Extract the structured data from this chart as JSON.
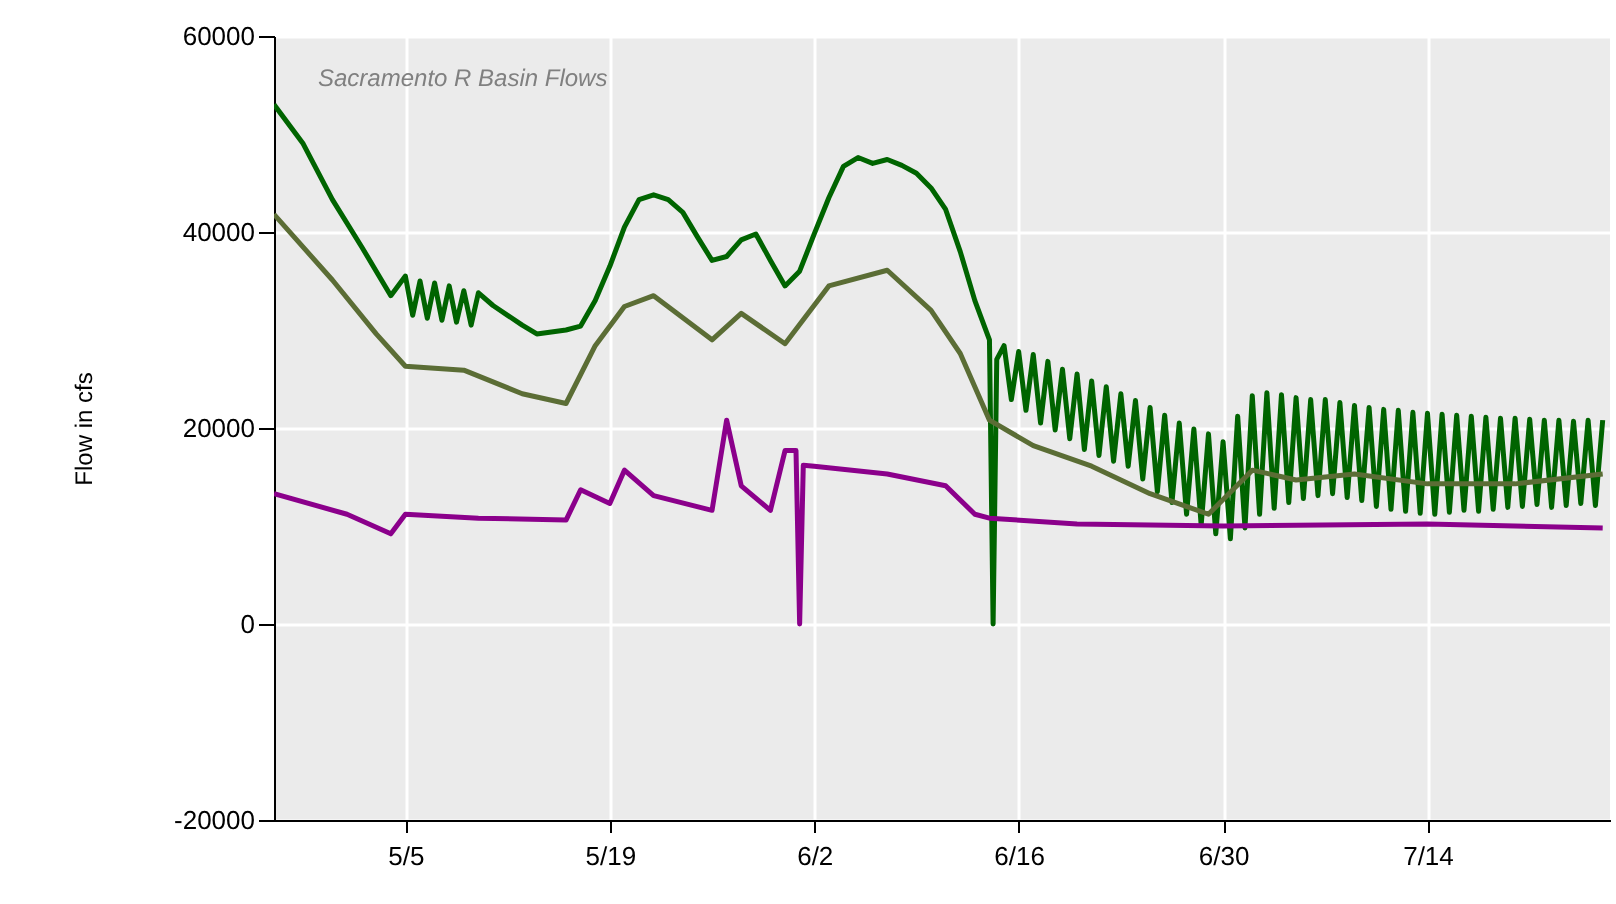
{
  "chart_data": {
    "type": "line",
    "title": "Sacramento R Basin Flows",
    "ylabel": "Flow in cfs",
    "xlim": [
      "--04-26",
      "--07-26T12:00"
    ],
    "xticks": [
      {
        "value": "--05-05",
        "label": "5/5"
      },
      {
        "value": "--05-19",
        "label": "5/19"
      },
      {
        "value": "--06-02",
        "label": "6/2"
      },
      {
        "value": "--06-16",
        "label": "6/16"
      },
      {
        "value": "--06-30",
        "label": "6/30"
      },
      {
        "value": "--07-14",
        "label": "7/14"
      }
    ],
    "ylim": [
      -20000,
      60000
    ],
    "yticks": [
      -20000,
      0,
      20000,
      40000,
      60000
    ],
    "grid": true,
    "marker": "none",
    "line_style": "solid",
    "series": [
      {
        "color": "#006400",
        "x": [
          "--04-26",
          "--04-28",
          "--04-30",
          "--05-02",
          "--05-03",
          "--05-04",
          "--05-05",
          "--05-05T12:00",
          "--05-06",
          "--05-06T12:00",
          "--05-07",
          "--05-07T12:00",
          "--05-08",
          "--05-08T12:00",
          "--05-09",
          "--05-09T12:00",
          "--05-10",
          "--05-11",
          "--05-12",
          "--05-13",
          "--05-14",
          "--05-15",
          "--05-16",
          "--05-17",
          "--05-18",
          "--05-19",
          "--05-20",
          "--05-21",
          "--05-22",
          "--05-23",
          "--05-24",
          "--05-25",
          "--05-26",
          "--05-27",
          "--05-28",
          "--05-29",
          "--05-30",
          "--05-31",
          "--06-01",
          "--06-02",
          "--06-03",
          "--06-04",
          "--06-05",
          "--06-06",
          "--06-07",
          "--06-08",
          "--06-09",
          "--06-10",
          "--06-11",
          "--06-12",
          "--06-13",
          "--06-14",
          "--06-14T06:00",
          "--06-14T12:00",
          "--06-15",
          "--06-15T12:00",
          "--06-16",
          "--06-16T12:00",
          "--06-17",
          "--06-17T12:00",
          "--06-18",
          "--06-18T12:00",
          "--06-19",
          "--06-19T12:00",
          "--06-20",
          "--06-20T12:00",
          "--06-21",
          "--06-21T12:00",
          "--06-22",
          "--06-22T12:00",
          "--06-23",
          "--06-23T12:00",
          "--06-24",
          "--06-24T12:00",
          "--06-25",
          "--06-25T12:00",
          "--06-26",
          "--06-26T12:00",
          "--06-27",
          "--06-27T12:00",
          "--06-28",
          "--06-28T12:00",
          "--06-29",
          "--06-29T12:00",
          "--06-30",
          "--06-30T12:00",
          "--07-01",
          "--07-01T12:00",
          "--07-02",
          "--07-02T12:00",
          "--07-03",
          "--07-03T12:00",
          "--07-04",
          "--07-04T12:00",
          "--07-05",
          "--07-05T12:00",
          "--07-06",
          "--07-06T12:00",
          "--07-07",
          "--07-07T12:00",
          "--07-08",
          "--07-08T12:00",
          "--07-09",
          "--07-09T12:00",
          "--07-10",
          "--07-10T12:00",
          "--07-11",
          "--07-11T12:00",
          "--07-12",
          "--07-12T12:00",
          "--07-13",
          "--07-13T12:00",
          "--07-14",
          "--07-14T12:00",
          "--07-15",
          "--07-15T12:00",
          "--07-16",
          "--07-16T12:00",
          "--07-17",
          "--07-17T12:00",
          "--07-18",
          "--07-18T12:00",
          "--07-19",
          "--07-19T12:00",
          "--07-20",
          "--07-20T12:00",
          "--07-21",
          "--07-21T12:00",
          "--07-22",
          "--07-22T12:00",
          "--07-23",
          "--07-23T12:00",
          "--07-24",
          "--07-24T12:00",
          "--07-25",
          "--07-25T12:00",
          "--07-26"
        ],
        "values": [
          53000,
          49000,
          43300,
          38500,
          36000,
          33500,
          35500,
          31500,
          35000,
          31200,
          34800,
          31000,
          34500,
          30800,
          34000,
          30500,
          33800,
          32500,
          31500,
          30500,
          29600,
          29800,
          30000,
          30400,
          33000,
          36500,
          40500,
          43300,
          43800,
          43300,
          42000,
          39500,
          37100,
          37500,
          39200,
          39800,
          37100,
          34500,
          36000,
          39800,
          43500,
          46700,
          47600,
          47000,
          47400,
          46800,
          46000,
          44500,
          42300,
          38000,
          33000,
          29000,
          0,
          27000,
          28400,
          22900,
          27800,
          21800,
          27500,
          20500,
          26800,
          19800,
          26000,
          18900,
          25500,
          17800,
          24800,
          17200,
          24200,
          16600,
          23500,
          16100,
          22800,
          14800,
          22100,
          13500,
          21300,
          12400,
          20500,
          11200,
          19900,
          10100,
          19400,
          9200,
          18600,
          8700,
          21200,
          9800,
          23300,
          11200,
          23600,
          11800,
          23400,
          12400,
          23100,
          12800,
          22900,
          13100,
          22900,
          13300,
          22600,
          12900,
          22300,
          12600,
          22100,
          12000,
          21900,
          11700,
          21800,
          11500,
          21600,
          11300,
          21500,
          11200,
          21400,
          11400,
          21300,
          11600,
          21200,
          11500,
          21100,
          11700,
          21000,
          11900,
          21000,
          12000,
          20900,
          12200,
          20800,
          11900,
          20800,
          12100,
          20700,
          12300,
          20800,
          12100,
          20800
        ]
      },
      {
        "color": "#8b008b",
        "x": [
          "--04-26",
          "--05-01",
          "--05-04",
          "--05-05",
          "--05-10",
          "--05-16",
          "--05-17",
          "--05-19",
          "--05-20",
          "--05-22",
          "--05-26",
          "--05-27",
          "--05-28",
          "--05-30",
          "--05-31",
          "--05-31T18:00",
          "--06-01",
          "--06-01T06:00",
          "--06-02",
          "--06-07",
          "--06-11",
          "--06-13",
          "--06-14",
          "--06-20",
          "--06-30",
          "--07-14",
          "--07-26"
        ],
        "values": [
          13300,
          11200,
          9200,
          11200,
          10800,
          10600,
          13700,
          12300,
          15700,
          13100,
          11600,
          20800,
          14100,
          11600,
          17700,
          17700,
          0,
          16200,
          16100,
          15300,
          14100,
          11200,
          10800,
          10200,
          10000,
          10200,
          9800
        ]
      },
      {
        "color": "#5b6d35",
        "x": [
          "--04-26",
          "--04-30",
          "--05-03",
          "--05-05",
          "--05-09",
          "--05-13",
          "--05-16",
          "--05-18",
          "--05-20",
          "--05-22",
          "--05-26",
          "--05-28",
          "--05-31",
          "--06-03",
          "--06-07",
          "--06-10",
          "--06-12",
          "--06-14",
          "--06-17",
          "--06-21",
          "--06-25",
          "--06-29",
          "--07-02",
          "--07-05",
          "--07-09",
          "--07-14",
          "--07-20",
          "--07-26"
        ],
        "values": [
          41800,
          35100,
          29600,
          26300,
          25900,
          23500,
          22500,
          28400,
          32400,
          33500,
          29000,
          31700,
          28600,
          34500,
          36100,
          32000,
          27600,
          20800,
          18200,
          16100,
          13300,
          11200,
          15700,
          14700,
          15300,
          14300,
          14300,
          15300
        ]
      }
    ]
  }
}
